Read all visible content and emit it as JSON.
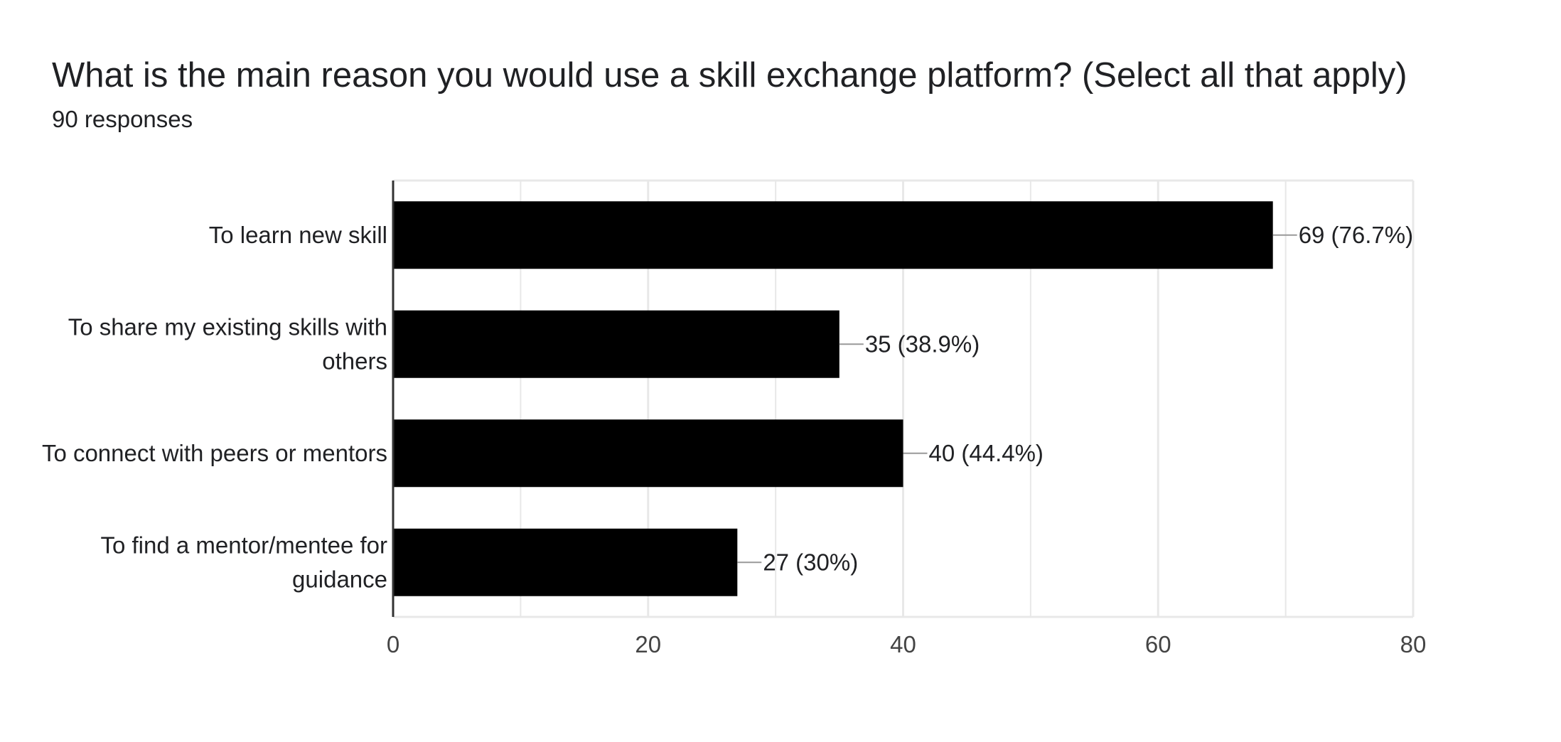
{
  "header": {
    "title": "What is the main reason you would use a skill exchange platform? (Select all that apply)",
    "responses": "90 responses"
  },
  "colors": {
    "bar": "#000000",
    "grid": "#e8e8e8",
    "axis": "#333333",
    "leader": "#999999",
    "text": "#202124",
    "tick_text": "#444444"
  },
  "chart_data": {
    "type": "bar",
    "orientation": "horizontal",
    "categories": [
      [
        "To learn new skill"
      ],
      [
        "To share my existing skills with",
        "others"
      ],
      [
        "To connect with peers or mentors"
      ],
      [
        "To find a mentor/mentee for",
        "guidance"
      ]
    ],
    "values": [
      69,
      35,
      40,
      27
    ],
    "data_labels": [
      "69 (76.7%)",
      "35 (38.9%)",
      "40 (44.4%)",
      "27 (30%)"
    ],
    "xlim": [
      0,
      80
    ],
    "xticks": [
      0,
      20,
      40,
      60,
      80
    ],
    "minor_gridlines": [
      10,
      30,
      50,
      70
    ],
    "grid": true,
    "legend": "none"
  }
}
